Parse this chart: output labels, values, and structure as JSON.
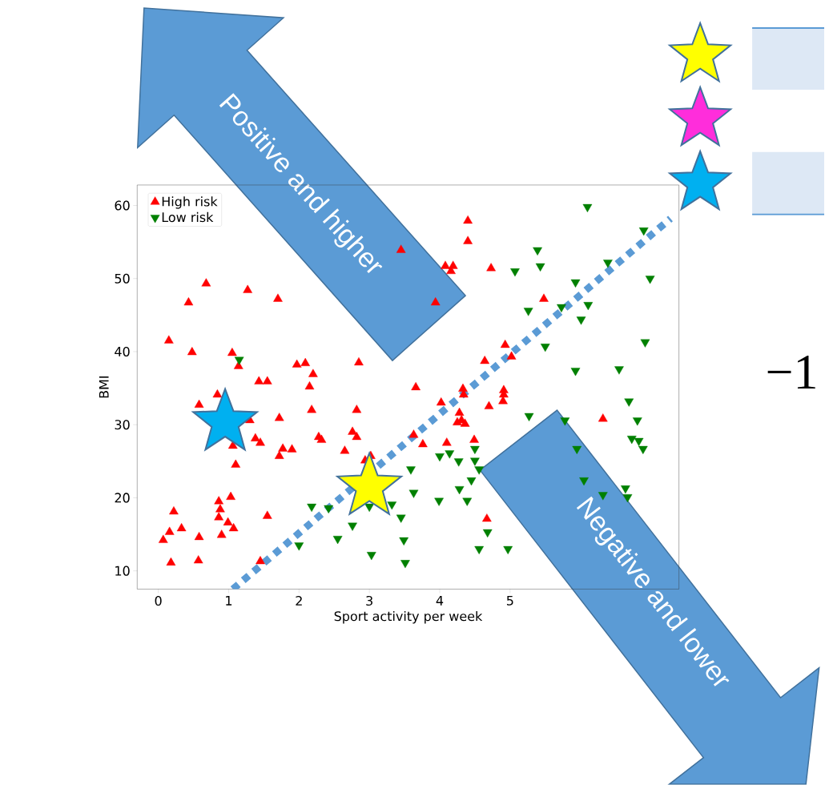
{
  "chart_data": {
    "type": "scatter",
    "xlabel": "Sport activity per week",
    "ylabel": "BMI",
    "xlim": [
      -0.3,
      7.4
    ],
    "ylim": [
      7.5,
      62.8
    ],
    "xticks": [
      0,
      1,
      2,
      3,
      4,
      5
    ],
    "yticks": [
      10,
      20,
      30,
      40,
      50,
      60
    ],
    "legend": "top left",
    "grid": false,
    "annotations": [
      "Positive and higher",
      "Negative and lower",
      "−1"
    ],
    "series": [
      {
        "name": "High risk",
        "color": "#ff0000",
        "marker": "triangle",
        "x": [
          0.68,
          0.43,
          1.27,
          1.7,
          3.45,
          0.15,
          0.48,
          1.05,
          1.14,
          1.97,
          2.09,
          2.2,
          1.43,
          1.55,
          2.15,
          2.85,
          3.94,
          4.4,
          4.4,
          4.08,
          4.19,
          4.16,
          4.73,
          5.48,
          4.93,
          5.02,
          4.64,
          3.66,
          4.33,
          4.91,
          0.84,
          0.58,
          1.3,
          1.72,
          2.18,
          2.82,
          1.38,
          1.45,
          1.06,
          1.77,
          1.9,
          1.72,
          2.28,
          2.32,
          2.76,
          2.82,
          2.65,
          1.1,
          2.94,
          3.02,
          0.86,
          1.03,
          0.88,
          0.86,
          0.99,
          1.07,
          0.9,
          0.22,
          0.16,
          0.33,
          0.07,
          0.58,
          0.18,
          0.57,
          1.55,
          1.45,
          4.02,
          4.34,
          4.91,
          4.9,
          4.7,
          4.28,
          4.31,
          4.25,
          4.36,
          3.63,
          3.76,
          4.1,
          4.49,
          6.32,
          4.67
        ],
        "values": [
          49.3,
          46.7,
          48.4,
          47.2,
          53.9,
          41.5,
          39.9,
          39.8,
          38.0,
          38.2,
          38.4,
          36.9,
          35.9,
          35.9,
          35.2,
          38.5,
          46.7,
          57.9,
          55.1,
          51.7,
          51.7,
          51.0,
          51.4,
          47.2,
          40.9,
          39.3,
          38.7,
          35.1,
          34.9,
          34.7,
          34.1,
          32.7,
          30.6,
          30.9,
          32.0,
          32.0,
          28.1,
          27.5,
          27.1,
          26.7,
          26.6,
          25.7,
          28.3,
          27.9,
          29.0,
          28.3,
          26.4,
          24.5,
          25.1,
          25.7,
          19.5,
          20.1,
          18.4,
          17.3,
          16.6,
          15.8,
          14.9,
          18.1,
          15.3,
          15.8,
          14.2,
          14.6,
          11.1,
          11.4,
          17.5,
          11.3,
          33.0,
          34.1,
          34.1,
          33.2,
          32.5,
          31.6,
          30.6,
          30.3,
          30.1,
          28.6,
          27.3,
          27.5,
          27.9,
          30.8,
          17.1
        ]
      },
      {
        "name": "Low risk",
        "color": "#008000",
        "marker": "triangle_down",
        "x": [
          1.15,
          5.07,
          5.39,
          5.43,
          6.1,
          6.9,
          6.39,
          6.99,
          5.93,
          6.11,
          6.01,
          5.73,
          5.26,
          5.5,
          6.92,
          5.93,
          6.55,
          2.18,
          2.42,
          2.76,
          2.55,
          2.0,
          3.03,
          3.32,
          3.45,
          3.49,
          3.51,
          3.0,
          5.27,
          5.78,
          6.69,
          6.81,
          6.73,
          6.83,
          6.89,
          5.95,
          4.0,
          4.14,
          4.27,
          4.5,
          4.5,
          4.56,
          3.59,
          3.63,
          3.99,
          4.28,
          4.39,
          4.45,
          6.64,
          6.67,
          6.32,
          4.68,
          4.56,
          4.97,
          6.05
        ],
        "values": [
          38.9,
          51.0,
          53.9,
          51.7,
          59.8,
          56.6,
          52.2,
          50.0,
          49.5,
          46.4,
          44.4,
          46.1,
          45.6,
          40.7,
          41.3,
          37.4,
          37.6,
          18.8,
          18.6,
          16.2,
          14.4,
          13.5,
          12.2,
          19.1,
          17.3,
          14.2,
          11.1,
          18.8,
          31.2,
          30.6,
          33.2,
          30.6,
          28.1,
          27.8,
          26.7,
          26.7,
          25.7,
          26.1,
          25.0,
          26.7,
          25.1,
          23.9,
          23.9,
          20.7,
          19.6,
          21.2,
          19.6,
          22.4,
          21.3,
          20.1,
          20.4,
          15.3,
          13.0,
          13.0,
          22.4
        ]
      },
      {
        "type": "line",
        "color": "#5b9bd5",
        "line_style": "dotted",
        "marker": "none",
        "x": [
          1.06,
          7.28
        ],
        "values": [
          7.5,
          58.2
        ]
      },
      {
        "marker": "star",
        "colors": [
          "#00b0f0",
          "#ffff00"
        ],
        "x": [
          0.95,
          3.0
        ],
        "values": [
          30.3,
          21.5
        ]
      }
    ]
  }
}
